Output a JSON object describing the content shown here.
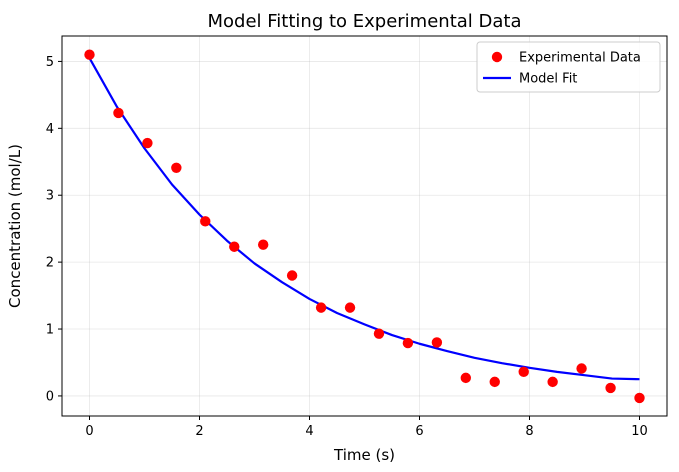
{
  "chart_data": {
    "type": "scatter",
    "title": "Model Fitting to Experimental Data",
    "xlabel": "Time (s)",
    "ylabel": "Concentration (mol/L)",
    "xlim": [
      -0.5,
      10.5
    ],
    "ylim": [
      -0.3,
      5.38
    ],
    "xticks": [
      0,
      2,
      4,
      6,
      8,
      10
    ],
    "yticks": [
      0,
      1,
      2,
      3,
      4,
      5
    ],
    "grid": true,
    "legend_position": "top-right",
    "series": [
      {
        "name": "Experimental Data",
        "kind": "scatter",
        "color": "#ff0000",
        "x": [
          0,
          0.526,
          1.053,
          1.579,
          2.105,
          2.632,
          3.158,
          3.684,
          4.211,
          4.737,
          5.263,
          5.789,
          6.316,
          6.842,
          7.368,
          7.895,
          8.421,
          8.947,
          9.474,
          10
        ],
        "y": [
          5.1,
          4.23,
          3.78,
          3.41,
          2.61,
          2.23,
          2.26,
          1.8,
          1.32,
          1.32,
          0.93,
          0.79,
          0.8,
          0.27,
          0.21,
          0.36,
          0.21,
          0.41,
          0.12,
          -0.03
        ]
      },
      {
        "name": "Model Fit",
        "kind": "line",
        "color": "#0000ff",
        "x": [
          0,
          0.5,
          1,
          1.5,
          2,
          2.5,
          3,
          3.5,
          4,
          4.5,
          5,
          5.5,
          6,
          6.5,
          7,
          7.5,
          8,
          8.5,
          9,
          9.5,
          10
        ],
        "y": [
          5.05,
          4.32,
          3.7,
          3.16,
          2.71,
          2.32,
          1.98,
          1.7,
          1.45,
          1.24,
          1.07,
          0.91,
          0.78,
          0.67,
          0.57,
          0.49,
          0.42,
          0.36,
          0.31,
          0.26,
          0.25
        ]
      }
    ]
  }
}
